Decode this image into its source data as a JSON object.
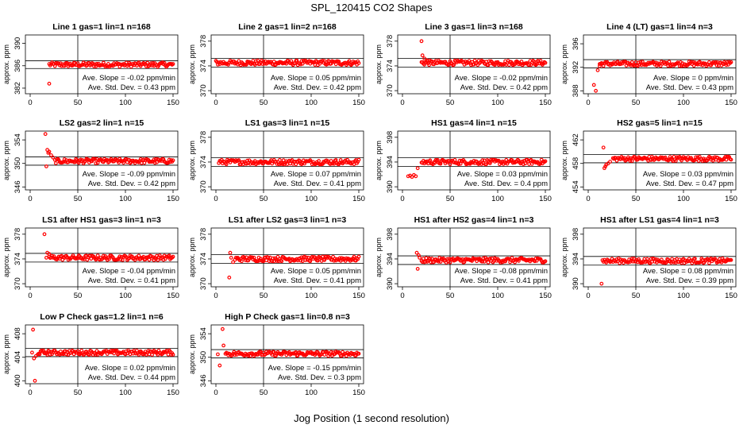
{
  "title": "SPL_120415  CO2 Shapes",
  "xlabel": "Jog Position (1 second resolution)",
  "chart_data": [
    {
      "type": "scatter",
      "title": "Line 1 gas=1 lin=1 n=168",
      "ylabel": "approx. ppm",
      "xlim": [
        0,
        150
      ],
      "ylim": [
        381,
        391.5
      ],
      "yticks": [
        382,
        386,
        390
      ],
      "xticks": [
        0,
        50,
        100,
        150
      ],
      "level": 386.2,
      "band": 1.4,
      "x_start": 20,
      "spikes": [
        [
          20,
          382.8
        ]
      ],
      "slope_text": "Ave. Slope = -0.02 ppm/min",
      "std_text": "Ave. Std. Dev. = 0.43 ppm"
    },
    {
      "type": "scatter",
      "title": "Line 2 gas=1 lin=2 n=168",
      "ylabel": "approx. ppm",
      "xlim": [
        0,
        150
      ],
      "ylim": [
        369.5,
        379
      ],
      "yticks": [
        370,
        374,
        378
      ],
      "xticks": [
        0,
        50,
        100,
        150
      ],
      "level": 374.5,
      "band": 1.4,
      "x_start": 0,
      "spikes": [],
      "slope_text": "Ave. Slope = 0.05 ppm/min",
      "std_text": "Ave. Std. Dev. = 0.42 ppm"
    },
    {
      "type": "scatter",
      "title": "Line 3 gas=1 lin=3 n=168",
      "ylabel": "approx. ppm",
      "xlim": [
        0,
        150
      ],
      "ylim": [
        369.5,
        379
      ],
      "yticks": [
        370,
        374,
        378
      ],
      "xticks": [
        0,
        50,
        100,
        150
      ],
      "level": 374.5,
      "band": 1.4,
      "x_start": 20,
      "spikes": [
        [
          20,
          378
        ],
        [
          21,
          375.7
        ],
        [
          23,
          375.2
        ],
        [
          26,
          374.9
        ]
      ],
      "slope_text": "Ave. Slope = -0.02 ppm/min",
      "std_text": "Ave. Std. Dev. = 0.42 ppm"
    },
    {
      "type": "scatter",
      "title": "Line 4 (LT) gas=1 lin=4 n=3",
      "ylabel": "approx. ppm",
      "xlim": [
        0,
        150
      ],
      "ylim": [
        387.5,
        397.5
      ],
      "yticks": [
        388,
        392,
        396
      ],
      "xticks": [
        0,
        50,
        100,
        150
      ],
      "level": 392.6,
      "band": 1.4,
      "x_start": 12,
      "spikes": [
        [
          6,
          389
        ],
        [
          8,
          388
        ],
        [
          10,
          391.5
        ],
        [
          12,
          392.2
        ]
      ],
      "slope_text": "Ave. Slope = 0 ppm/min",
      "std_text": "Ave. Std. Dev. = 0.43 ppm"
    },
    {
      "type": "scatter",
      "title": "LS2 gas=2 lin=1 n=15",
      "ylabel": "approx. ppm",
      "xlim": [
        0,
        150
      ],
      "ylim": [
        345.5,
        355.5
      ],
      "yticks": [
        346,
        350,
        354
      ],
      "xticks": [
        0,
        50,
        100,
        150
      ],
      "level": 350.4,
      "band": 1.4,
      "x_start": 26,
      "spikes": [
        [
          16,
          355
        ],
        [
          17,
          349.5
        ],
        [
          18,
          352.3
        ],
        [
          19,
          351.8
        ],
        [
          20,
          352
        ],
        [
          22,
          351.4
        ],
        [
          24,
          351
        ]
      ],
      "slope_text": "Ave. Slope = -0.09 ppm/min",
      "std_text": "Ave. Std. Dev. = 0.42 ppm"
    },
    {
      "type": "scatter",
      "title": "LS1 gas=3 lin=1 n=15",
      "ylabel": "approx. ppm",
      "xlim": [
        0,
        150
      ],
      "ylim": [
        369.5,
        379
      ],
      "yticks": [
        370,
        374,
        378
      ],
      "xticks": [
        0,
        50,
        100,
        150
      ],
      "level": 374,
      "band": 1.4,
      "x_start": 3,
      "spikes": [],
      "slope_text": "Ave. Slope = 0.07 ppm/min",
      "std_text": "Ave. Std. Dev. = 0.41 ppm"
    },
    {
      "type": "scatter",
      "title": "HS1 gas=4 lin=1 n=15",
      "ylabel": "approx. ppm",
      "xlim": [
        0,
        150
      ],
      "ylim": [
        389.5,
        399
      ],
      "yticks": [
        390,
        394,
        398
      ],
      "xticks": [
        0,
        50,
        100,
        150
      ],
      "level": 394,
      "band": 1.4,
      "x_start": 20,
      "spikes": [
        [
          6,
          391.7
        ],
        [
          8,
          391.8
        ],
        [
          10,
          391.6
        ],
        [
          12,
          391.9
        ],
        [
          14,
          391.7
        ],
        [
          16,
          393
        ]
      ],
      "slope_text": "Ave. Slope = 0.03 ppm/min",
      "std_text": "Ave. Std. Dev. = 0.4 ppm"
    },
    {
      "type": "scatter",
      "title": "HS2 gas=5 lin=1 n=15",
      "ylabel": "approx. ppm",
      "xlim": [
        0,
        150
      ],
      "ylim": [
        453.5,
        463.5
      ],
      "yticks": [
        454,
        458,
        462
      ],
      "xticks": [
        0,
        50,
        100,
        150
      ],
      "level": 458.8,
      "band": 1.4,
      "x_start": 26,
      "spikes": [
        [
          16,
          460.7
        ],
        [
          17,
          457.2
        ],
        [
          18,
          457.5
        ],
        [
          19,
          457.8
        ],
        [
          21,
          458
        ],
        [
          23,
          458.3
        ]
      ],
      "slope_text": "Ave. Slope = 0.03 ppm/min",
      "std_text": "Ave. Std. Dev. = 0.47 ppm"
    },
    {
      "type": "scatter",
      "title": "LS1 after HS1 gas=3 lin=1 n=3",
      "ylabel": "approx. ppm",
      "xlim": [
        0,
        150
      ],
      "ylim": [
        369.5,
        379
      ],
      "yticks": [
        370,
        374,
        378
      ],
      "xticks": [
        0,
        50,
        100,
        150
      ],
      "level": 374.2,
      "band": 1.4,
      "x_start": 20,
      "spikes": [
        [
          15,
          378
        ],
        [
          17,
          374.2
        ],
        [
          18,
          375
        ],
        [
          20,
          374.8
        ]
      ],
      "slope_text": "Ave. Slope = -0.04 ppm/min",
      "std_text": "Ave. Std. Dev. = 0.41 ppm"
    },
    {
      "type": "scatter",
      "title": "LS1 after LS2 gas=3 lin=1 n=3",
      "ylabel": "approx. ppm",
      "xlim": [
        0,
        150
      ],
      "ylim": [
        369.5,
        379
      ],
      "yticks": [
        370,
        374,
        378
      ],
      "xticks": [
        0,
        50,
        100,
        150
      ],
      "level": 374,
      "band": 1.4,
      "x_start": 20,
      "spikes": [
        [
          14,
          371
        ],
        [
          15,
          375
        ],
        [
          16,
          374.2
        ],
        [
          18,
          373.5
        ]
      ],
      "slope_text": "Ave. Slope = 0.05 ppm/min",
      "std_text": "Ave. Std. Dev. = 0.41 ppm"
    },
    {
      "type": "scatter",
      "title": "HS1 after HS2 gas=4 lin=1 n=3",
      "ylabel": "approx. ppm",
      "xlim": [
        0,
        150
      ],
      "ylim": [
        389.5,
        399
      ],
      "yticks": [
        390,
        394,
        398
      ],
      "xticks": [
        0,
        50,
        100,
        150
      ],
      "level": 393.8,
      "band": 1.4,
      "x_start": 20,
      "spikes": [
        [
          15,
          395
        ],
        [
          16,
          392.4
        ],
        [
          17,
          394.6
        ],
        [
          18,
          394.2
        ]
      ],
      "slope_text": "Ave. Slope = -0.08 ppm/min",
      "std_text": "Ave. Std. Dev. = 0.41 ppm"
    },
    {
      "type": "scatter",
      "title": "HS1 after LS1 gas=4 lin=1 n=3",
      "ylabel": "approx. ppm",
      "xlim": [
        0,
        150
      ],
      "ylim": [
        389.5,
        399
      ],
      "yticks": [
        390,
        394,
        398
      ],
      "xticks": [
        0,
        50,
        100,
        150
      ],
      "level": 393.7,
      "band": 1.4,
      "x_start": 16,
      "spikes": [
        [
          14,
          390
        ],
        [
          15,
          393.8
        ]
      ],
      "slope_text": "Ave. Slope = 0.08 ppm/min",
      "std_text": "Ave. Std. Dev. = 0.39 ppm"
    },
    {
      "type": "scatter",
      "title": "Low P Check gas=1.2 lin=1 n=6",
      "ylabel": "approx. ppm",
      "xlim": [
        0,
        150
      ],
      "ylim": [
        399.5,
        409.5
      ],
      "yticks": [
        400,
        404,
        408
      ],
      "xticks": [
        0,
        50,
        100,
        150
      ],
      "level": 404.8,
      "band": 1.4,
      "x_start": 8,
      "spikes": [
        [
          2,
          404.8
        ],
        [
          3,
          408.7
        ],
        [
          4,
          403.8
        ],
        [
          5,
          400
        ],
        [
          6,
          404.2
        ]
      ],
      "slope_text": "Ave. Slope = 0.02 ppm/min",
      "std_text": "Ave. Std. Dev. = 0.44 ppm"
    },
    {
      "type": "scatter",
      "title": "High P Check gas=1 lin=0.8 n=3",
      "ylabel": "approx. ppm",
      "xlim": [
        0,
        150
      ],
      "ylim": [
        345.5,
        355.5
      ],
      "yticks": [
        346,
        350,
        354
      ],
      "xticks": [
        0,
        50,
        100,
        150
      ],
      "level": 350.6,
      "band": 1.4,
      "x_start": 10,
      "spikes": [
        [
          2,
          350.5
        ],
        [
          4,
          348.6
        ],
        [
          7,
          354.8
        ],
        [
          8,
          352
        ]
      ],
      "slope_text": "Ave. Slope = -0.15 ppm/min",
      "std_text": "Ave. Std. Dev. = 0.3 ppm"
    }
  ],
  "colors": {
    "points": "#ff0000",
    "axes": "#000000"
  }
}
